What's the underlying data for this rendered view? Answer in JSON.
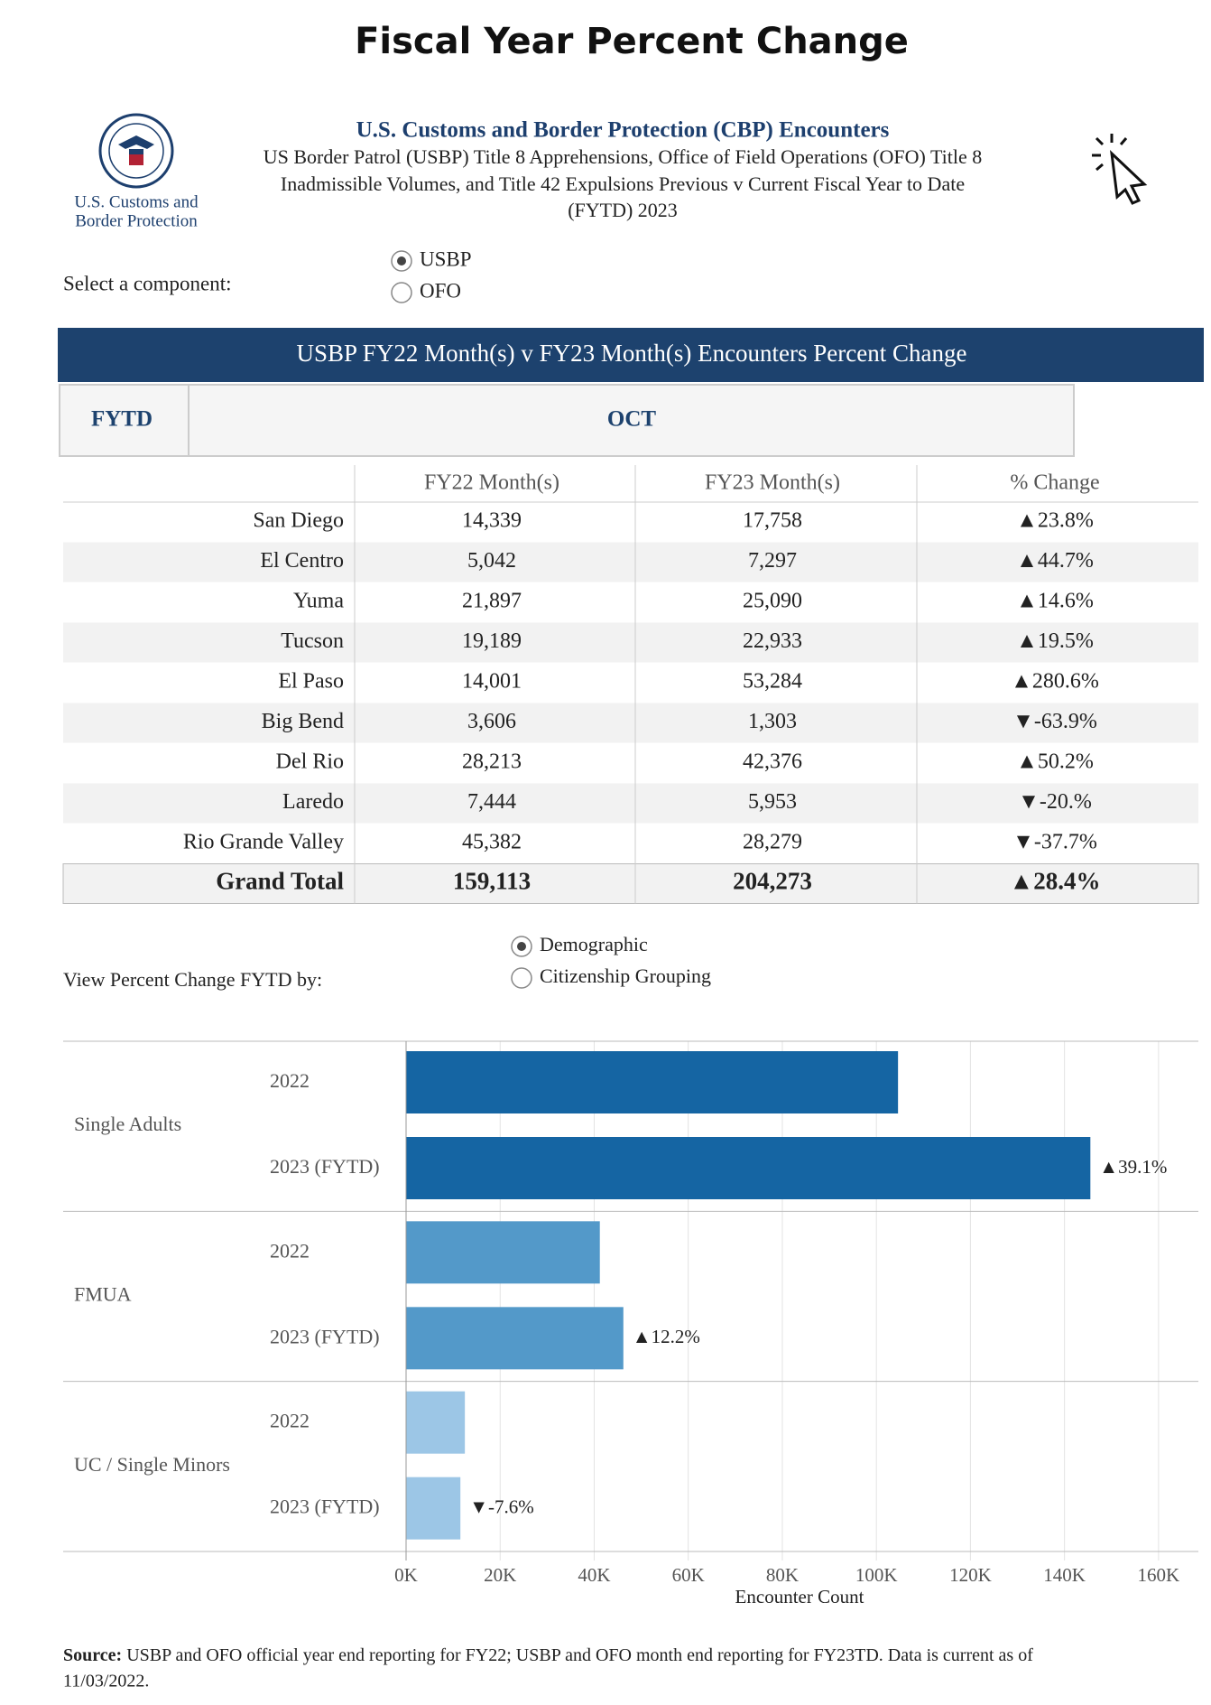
{
  "header": {
    "title": "Fiscal Year Percent Change",
    "agency_title": "U.S. Customs and Border Protection (CBP) Encounters",
    "subtitle_lines": [
      "US Border Patrol (USBP) Title 8 Apprehensions, Office of Field Operations (OFO) Title 8",
      "Inadmissible Volumes, and Title 42 Expulsions Previous v Current Fiscal Year to Date",
      "(FYTD) 2023"
    ],
    "logo_text": [
      "U.S. Customs and",
      "Border Protection"
    ]
  },
  "component_selector": {
    "label": "Select a component:",
    "options": [
      "USBP",
      "OFO"
    ],
    "selected": 0
  },
  "table": {
    "banner": "USBP FY22 Month(s) v FY23 Month(s) Encounters Percent Change",
    "tabs": [
      "FYTD",
      "OCT"
    ],
    "columns": [
      "FY22 Month(s)",
      "FY23 Month(s)",
      "% Change"
    ],
    "rows": [
      [
        "San Diego",
        "14,339",
        "17,758",
        "▲23.8%"
      ],
      [
        "El Centro",
        "5,042",
        "7,297",
        "▲44.7%"
      ],
      [
        "Yuma",
        "21,897",
        "25,090",
        "▲14.6%"
      ],
      [
        "Tucson",
        "19,189",
        "22,933",
        "▲19.5%"
      ],
      [
        "El Paso",
        "14,001",
        "53,284",
        "▲280.6%"
      ],
      [
        "Big Bend",
        "3,606",
        "1,303",
        "▼-63.9%"
      ],
      [
        "Del Rio",
        "28,213",
        "42,376",
        "▲50.2%"
      ],
      [
        "Laredo",
        "7,444",
        "5,953",
        "▼-20.%"
      ],
      [
        "Rio Grande Valley",
        "45,382",
        "28,279",
        "▼-37.7%"
      ]
    ],
    "total": [
      "Grand Total",
      "159,113",
      "204,273",
      "▲28.4%"
    ]
  },
  "view_selector": {
    "label": "View Percent Change FYTD by:",
    "options": [
      "Demographic",
      "Citizenship Grouping"
    ],
    "selected": 0
  },
  "chart_data": {
    "type": "bar",
    "orientation": "horizontal",
    "categories": [
      "Single Adults",
      "FMUA",
      "UC / Single Minors"
    ],
    "colors": [
      "#1565a3",
      "#5399c9",
      "#9cc6e6"
    ],
    "series": [
      {
        "name": "2022",
        "values": [
          104600,
          41200,
          12500
        ]
      },
      {
        "name": "2023 (FYTD)",
        "values": [
          145500,
          46200,
          11550
        ]
      }
    ],
    "change_labels": [
      "▲39.1%",
      "▲12.2%",
      "▼-7.6%"
    ],
    "xlabel": "Encounter Count",
    "xlim": [
      0,
      170000
    ],
    "xticks": [
      {
        "value": 0,
        "label": "0K"
      },
      {
        "value": 20000,
        "label": "20K"
      },
      {
        "value": 40000,
        "label": "40K"
      },
      {
        "value": 60000,
        "label": "60K"
      },
      {
        "value": 80000,
        "label": "80K"
      },
      {
        "value": 100000,
        "label": "100K"
      },
      {
        "value": 120000,
        "label": "120K"
      },
      {
        "value": 140000,
        "label": "140K"
      },
      {
        "value": 160000,
        "label": "160K"
      }
    ],
    "grid": true
  },
  "source": {
    "label": "Source:",
    "lines": [
      "USBP and OFO official year end reporting for FY22; USBP and OFO month end reporting for FY23TD. Data is current as of",
      "11/03/2022."
    ]
  }
}
